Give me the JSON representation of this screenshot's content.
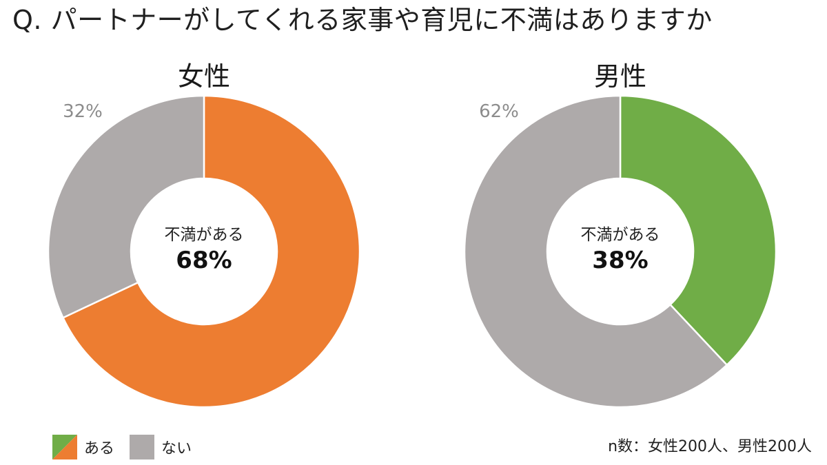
{
  "title": "Q. パートナーがしてくれる家事や育児に不満はありますか",
  "chart_data": [
    {
      "type": "pie",
      "variant": "donut",
      "title": "女性",
      "center_label": "不満がある",
      "center_value": "68%",
      "slices": [
        {
          "label": "ある",
          "value": 68,
          "display": "68%",
          "color": "#ed7d31"
        },
        {
          "label": "ない",
          "value": 32,
          "display": "32%",
          "color": "#aeaaaa",
          "color_text": "#8c8c8c"
        }
      ]
    },
    {
      "type": "pie",
      "variant": "donut",
      "title": "男性",
      "center_label": "不満がある",
      "center_value": "38%",
      "slices": [
        {
          "label": "ある",
          "value": 38,
          "display": "38%",
          "color": "#70ad47"
        },
        {
          "label": "ない",
          "value": 62,
          "display": "62%",
          "color": "#aeaaaa",
          "color_text": "#8c8c8c"
        }
      ]
    }
  ],
  "legend": {
    "items": [
      {
        "label": "ある",
        "colors": [
          "#70ad47",
          "#ed7d31"
        ]
      },
      {
        "label": "ない",
        "colors": [
          "#aeaaaa"
        ]
      }
    ]
  },
  "note": "n数：女性200人、男性200人"
}
